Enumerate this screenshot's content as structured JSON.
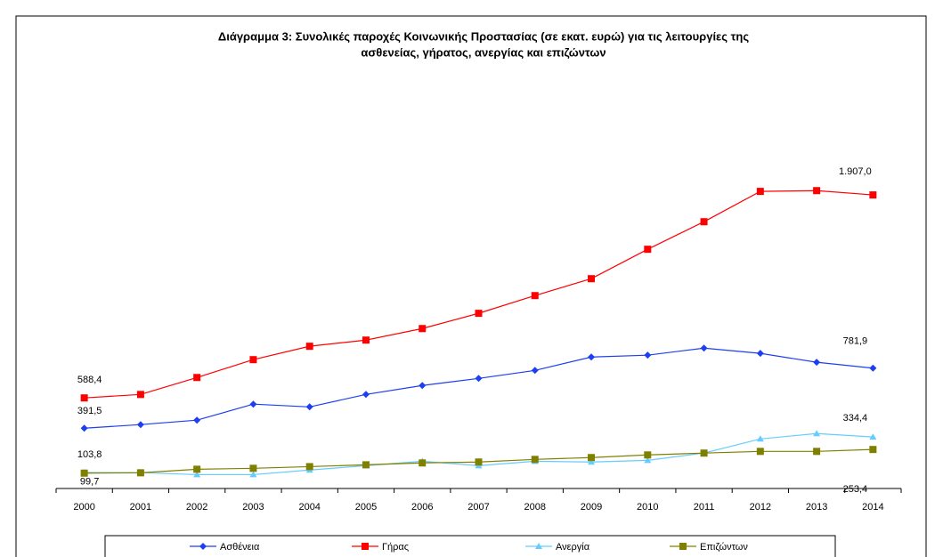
{
  "chart_data": {
    "type": "line",
    "title": [
      "Διάγραμμα 3: Συνολικές παροχές Κοινωνικής Προστασίας (σε εκατ. ευρώ) για τις λειτουργίες της",
      "ασθενείας, γήρατος, ανεργίας και επιζώντων"
    ],
    "categories": [
      "2000",
      "2001",
      "2002",
      "2003",
      "2004",
      "2005",
      "2006",
      "2007",
      "2008",
      "2009",
      "2010",
      "2011",
      "2012",
      "2013",
      "2014"
    ],
    "ylim": [
      0,
      2000
    ],
    "legend": "bottom",
    "series": [
      {
        "name": "Ασθένεια",
        "color": "#1c3ff0",
        "marker": "diamond",
        "values": [
          391.5,
          415,
          444,
          548,
          530,
          611,
          669,
          715,
          767,
          854,
          866,
          912,
          878,
          820,
          781.9
        ],
        "value_labels": [
          "391,5",
          null,
          null,
          null,
          null,
          null,
          null,
          null,
          null,
          null,
          null,
          null,
          null,
          null,
          "781,9"
        ]
      },
      {
        "name": "Γήρας",
        "color": "#ff0000",
        "marker": "square",
        "values": [
          588.4,
          611,
          721,
          837,
          924,
          964,
          1039,
          1138,
          1253,
          1363,
          1554,
          1733,
          1930,
          1935,
          1907.0
        ],
        "value_labels": [
          "588,4",
          null,
          null,
          null,
          null,
          null,
          null,
          null,
          null,
          null,
          null,
          null,
          null,
          null,
          "1.907,0"
        ]
      },
      {
        "name": "Ανεργία",
        "color": "#66ccff",
        "marker": "triangle",
        "values": [
          103.8,
          103,
          90,
          90,
          120,
          148,
          177,
          148,
          177,
          172,
          183,
          230,
          322,
          357,
          334.4
        ],
        "value_labels": [
          "103,8",
          null,
          null,
          null,
          null,
          null,
          null,
          null,
          null,
          null,
          null,
          null,
          null,
          null,
          "334,4"
        ]
      },
      {
        "name": "Επιζώντων",
        "color": "#808000",
        "marker": "square",
        "values": [
          99.7,
          102,
          125,
          131,
          142,
          154,
          166,
          172,
          189,
          201,
          218,
          230,
          241,
          241,
          253.4
        ],
        "value_labels": [
          "99,7",
          null,
          null,
          null,
          null,
          null,
          null,
          null,
          null,
          null,
          null,
          null,
          null,
          null,
          "253,4"
        ]
      }
    ]
  }
}
